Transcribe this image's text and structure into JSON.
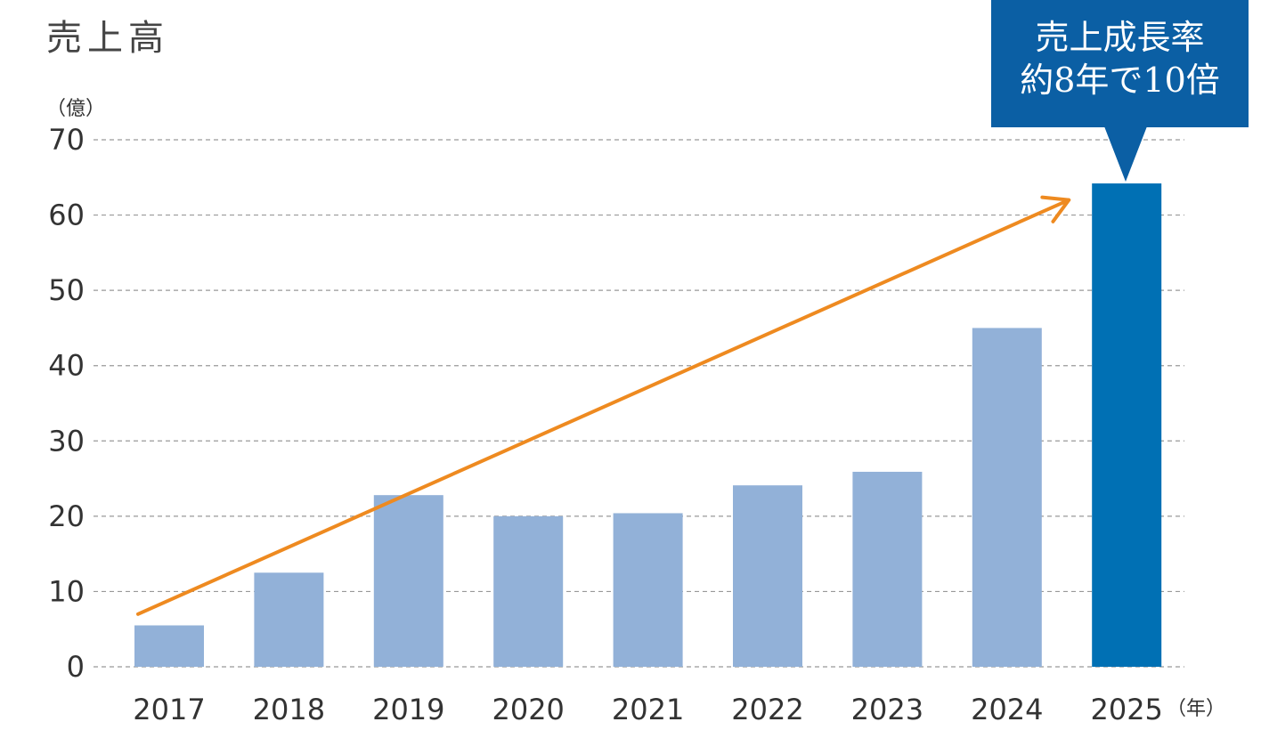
{
  "title": "売上高",
  "y_unit": "（億）",
  "x_unit": "（年）",
  "callout": {
    "line1": "売上成長率",
    "line2": "約8年で10倍",
    "color": "#0b5fa4"
  },
  "colors": {
    "bar": "#92b1d8",
    "highlight_bar": "#0070b4",
    "trend_arrow": "#ee8a20",
    "grid": "#999999"
  },
  "chart_data": {
    "type": "bar",
    "categories": [
      "2017",
      "2018",
      "2019",
      "2020",
      "2021",
      "2022",
      "2023",
      "2024",
      "2025"
    ],
    "values": [
      5.5,
      12.5,
      22.8,
      20.0,
      20.4,
      24.1,
      25.9,
      45.0,
      64.2
    ],
    "highlight_category": "2025",
    "title": "売上高",
    "xlabel": "（年）",
    "ylabel": "（億）",
    "ylim": [
      0,
      70
    ],
    "yticks": [
      0,
      10,
      20,
      30,
      40,
      50,
      60,
      70
    ],
    "grid": true,
    "trend_arrow": {
      "from": [
        "2017",
        7.0
      ],
      "to": [
        "2025",
        62.0
      ]
    }
  }
}
